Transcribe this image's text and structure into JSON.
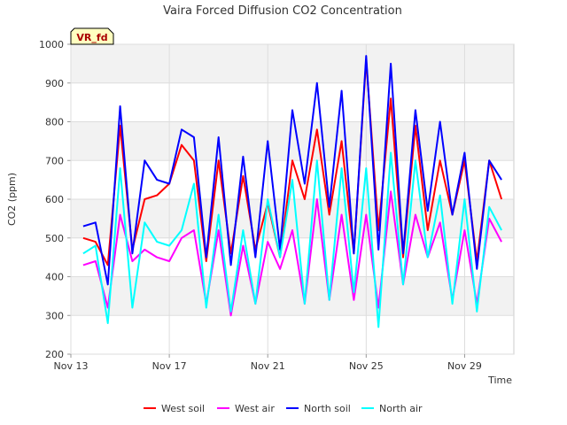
{
  "chart_data": {
    "type": "line",
    "title": "Vaira Forced Diffusion CO2 Concentration",
    "badge": "VR_fd",
    "xlabel": "Time",
    "ylabel": "CO2 (ppm)",
    "ylim": [
      200,
      1000
    ],
    "yticks": [
      200,
      300,
      400,
      500,
      600,
      700,
      800,
      900,
      1000
    ],
    "xlim": [
      "2023-11-13",
      "2023-11-31"
    ],
    "xticks": [
      {
        "date": "2023-11-13",
        "label": "Nov 13"
      },
      {
        "date": "2023-11-17",
        "label": "Nov 17"
      },
      {
        "date": "2023-11-21",
        "label": "Nov 21"
      },
      {
        "date": "2023-11-25",
        "label": "Nov 25"
      },
      {
        "date": "2023-11-29",
        "label": "Nov 29"
      }
    ],
    "x": [
      "2023-11-13T12",
      "2023-11-14T00",
      "2023-11-14T12",
      "2023-11-15T00",
      "2023-11-15T12",
      "2023-11-16T00",
      "2023-11-16T12",
      "2023-11-17T00",
      "2023-11-17T12",
      "2023-11-18T00",
      "2023-11-18T12",
      "2023-11-19T00",
      "2023-11-19T12",
      "2023-11-20T00",
      "2023-11-20T12",
      "2023-11-21T00",
      "2023-11-21T12",
      "2023-11-22T00",
      "2023-11-22T12",
      "2023-11-23T00",
      "2023-11-23T12",
      "2023-11-24T00",
      "2023-11-24T12",
      "2023-11-25T00",
      "2023-11-25T12",
      "2023-11-26T00",
      "2023-11-26T12",
      "2023-11-27T00",
      "2023-11-27T12",
      "2023-11-28T00",
      "2023-11-28T12",
      "2023-11-29T00",
      "2023-11-29T12",
      "2023-11-30T00",
      "2023-11-30T12"
    ],
    "series": [
      {
        "name": "West soil",
        "color": "#ff0000",
        "values": [
          500,
          490,
          430,
          790,
          470,
          600,
          610,
          640,
          740,
          700,
          440,
          700,
          460,
          660,
          470,
          590,
          450,
          700,
          600,
          780,
          560,
          750,
          460,
          960,
          520,
          860,
          450,
          790,
          520,
          700,
          560,
          700,
          440,
          700,
          600
        ]
      },
      {
        "name": "West air",
        "color": "#ff00ff",
        "values": [
          430,
          440,
          320,
          560,
          440,
          470,
          450,
          440,
          500,
          520,
          330,
          520,
          300,
          480,
          330,
          490,
          420,
          520,
          330,
          600,
          340,
          560,
          340,
          560,
          320,
          620,
          380,
          560,
          450,
          540,
          340,
          520,
          330,
          550,
          490
        ]
      },
      {
        "name": "North soil",
        "color": "#0000ff",
        "values": [
          530,
          540,
          380,
          840,
          460,
          700,
          650,
          640,
          780,
          760,
          450,
          760,
          430,
          710,
          450,
          750,
          470,
          830,
          640,
          900,
          580,
          880,
          460,
          970,
          470,
          950,
          460,
          830,
          570,
          800,
          560,
          720,
          420,
          700,
          650
        ]
      },
      {
        "name": "North air",
        "color": "#00ffff",
        "values": [
          460,
          480,
          280,
          680,
          320,
          540,
          490,
          480,
          520,
          640,
          320,
          560,
          310,
          520,
          330,
          600,
          450,
          650,
          330,
          700,
          340,
          680,
          360,
          680,
          270,
          720,
          380,
          700,
          450,
          610,
          330,
          600,
          310,
          580,
          520
        ]
      }
    ],
    "grid": true,
    "legend_position": "bottom"
  }
}
